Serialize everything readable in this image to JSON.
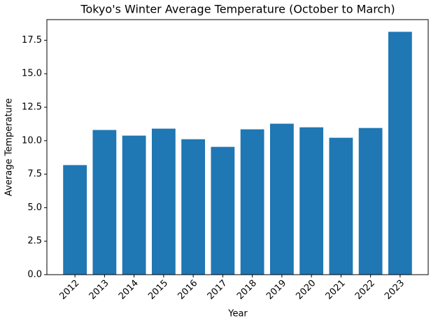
{
  "chart_data": {
    "type": "bar",
    "title": "Tokyo's Winter Average Temperature (October to March)",
    "x_label": "Year",
    "y_label": "Average Temperature",
    "categories": [
      "2012",
      "2013",
      "2014",
      "2015",
      "2016",
      "2017",
      "2018",
      "2019",
      "2020",
      "2021",
      "2022",
      "2023"
    ],
    "values": [
      8.18,
      10.8,
      10.38,
      10.9,
      10.11,
      9.54,
      10.85,
      11.27,
      11.0,
      10.22,
      10.95,
      18.13
    ],
    "color": "#1f77b4",
    "ylim": [
      0,
      19.04
    ],
    "yticks": [
      {
        "value": 0,
        "label": "0.0"
      },
      {
        "value": 2.5,
        "label": "2.5"
      },
      {
        "value": 5,
        "label": "5.0"
      },
      {
        "value": 7.5,
        "label": "7.5"
      },
      {
        "value": 10,
        "label": "10.0"
      },
      {
        "value": 12.5,
        "label": "12.5"
      },
      {
        "value": 15,
        "label": "15.0"
      },
      {
        "value": 17.5,
        "label": "17.5"
      }
    ],
    "grid": false
  }
}
